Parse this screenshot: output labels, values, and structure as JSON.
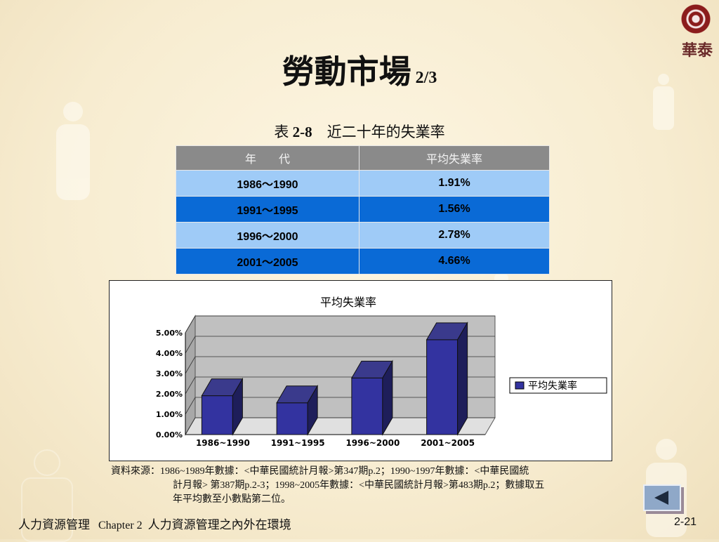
{
  "logo": {
    "text": "華泰"
  },
  "title": {
    "main": "勞動市場",
    "sub": "2/3"
  },
  "table": {
    "caption_prefix": "表",
    "caption_number": "2-8",
    "caption_text": "近二十年的失業率",
    "headers": [
      "年　　代",
      "平均失業率"
    ],
    "rows": [
      {
        "period": "1986～1990",
        "rate": "1.91%"
      },
      {
        "period": "1991～1995",
        "rate": "1.56%"
      },
      {
        "period": "1996～2000",
        "rate": "2.78%"
      },
      {
        "period": "2001～2005",
        "rate": "4.66%"
      }
    ]
  },
  "chart_data": {
    "type": "bar",
    "title": "平均失業率",
    "categories": [
      "1986~1990",
      "1991~1995",
      "1996~2000",
      "2001~2005"
    ],
    "series": [
      {
        "name": "平均失業率",
        "values": [
          1.91,
          1.56,
          2.78,
          4.66
        ]
      }
    ],
    "ylim": [
      0,
      5
    ],
    "y_ticks": [
      "0.00%",
      "1.00%",
      "2.00%",
      "3.00%",
      "4.00%",
      "5.00%"
    ],
    "grid": true,
    "three_d": true,
    "legend_position": "right",
    "bar_color": "#3333a0",
    "wall_color": "#c0c0c0"
  },
  "source": {
    "line1": "資料來源：1986~1989年數據：<中華民國統計月報>第347期p.2；1990~1997年數據：<中華民國統",
    "line2": "計月報> 第387期p.2-3；1998~2005年數據：<中華民國統計月報>第483期p.2；數據取五",
    "line3": "年平均數至小數點第二位。"
  },
  "footer": {
    "course": "人力資源管理",
    "chapter": "Chapter 2",
    "chapter_title": "人力資源管理之內外在環境",
    "page": "2-21"
  },
  "nav": {
    "back_icon": "back-arrow-icon"
  }
}
